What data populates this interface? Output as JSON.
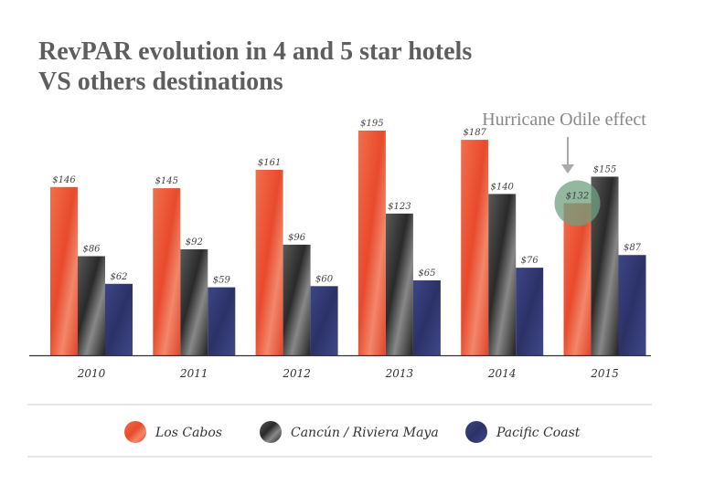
{
  "title": {
    "line1": "RevPAR evolution in 4 and 5 star hotels",
    "line2": "VS others destinations"
  },
  "annotation": {
    "text": "Hurricane Odile effect",
    "category": "2015",
    "series": "Los Cabos"
  },
  "colors": {
    "Los Cabos": "#ea5232",
    "Cancún / Riviera Maya": "#3a3a3a",
    "Pacific Coast": "#343c78",
    "highlight": "#6fa080",
    "axis": "#333333",
    "divider": "#cccccc"
  },
  "chart_data": {
    "type": "bar",
    "categories": [
      "2010",
      "2011",
      "2012",
      "2013",
      "2014",
      "2015"
    ],
    "series": [
      {
        "name": "Los Cabos",
        "values": [
          146,
          145,
          161,
          195,
          187,
          132
        ],
        "labels": [
          "$146",
          "$145",
          "$161",
          "$195",
          "$187",
          "$132"
        ]
      },
      {
        "name": "Cancún / Riviera Maya",
        "values": [
          86,
          92,
          96,
          123,
          140,
          155
        ],
        "labels": [
          "$86",
          "$92",
          "$96",
          "$123",
          "$140",
          "$155"
        ]
      },
      {
        "name": "Pacific Coast",
        "values": [
          62,
          59,
          60,
          65,
          76,
          87
        ],
        "labels": [
          "$62",
          "$59",
          "$60",
          "$65",
          "$76",
          "$87"
        ]
      }
    ],
    "ylim": [
      0,
      200
    ],
    "grid": false,
    "legend": "bottom"
  }
}
